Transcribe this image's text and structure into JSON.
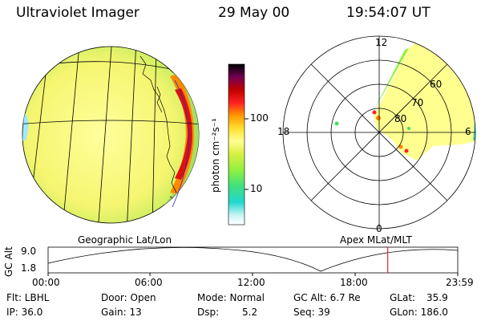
{
  "header": {
    "instrument": "Ultraviolet Imager",
    "date": "29 May 00",
    "time": "19:54:07 UT"
  },
  "colorbar": {
    "unit_label": "photon cm⁻²s⁻¹",
    "tick_high": "100",
    "tick_low": "10",
    "colors": [
      "#ffffff",
      "#b0f0f0",
      "#00e0d0",
      "#40e080",
      "#90f040",
      "#e0f040",
      "#ffff80",
      "#ffd020",
      "#ff9000",
      "#ff2020",
      "#c00000",
      "#600060",
      "#000000"
    ]
  },
  "geo_panel": {
    "label": "Geographic Lat/Lon"
  },
  "polar_panel": {
    "label": "Apex MLat/MLT",
    "mlt_labels": {
      "top": "12",
      "left": "18",
      "right": "6",
      "bottom": "0"
    },
    "lat_labels": [
      "60",
      "70",
      "80"
    ]
  },
  "altitude_plot": {
    "ylabel": "GC Alt",
    "y_top": "9.0",
    "y_bottom": "1.8",
    "x_ticks": [
      "00:00",
      "06:00",
      "12:00",
      "18:00",
      "23:59"
    ],
    "current_time_hours": 19.9
  },
  "footer": {
    "filter": "Flt: LBHL",
    "ip": "IP: 36.0",
    "door": "Door: Open",
    "gain": "Gain: 13",
    "mode": "Mode: Normal",
    "dsp_label": "Dsp:",
    "dsp_value": "5.2",
    "gc_alt": "GC Alt: 6.7 Re",
    "seq": "Seq: 39",
    "glat_label": "GLat:",
    "glat_value": "35.9",
    "glon": "GLon: 186.0"
  }
}
